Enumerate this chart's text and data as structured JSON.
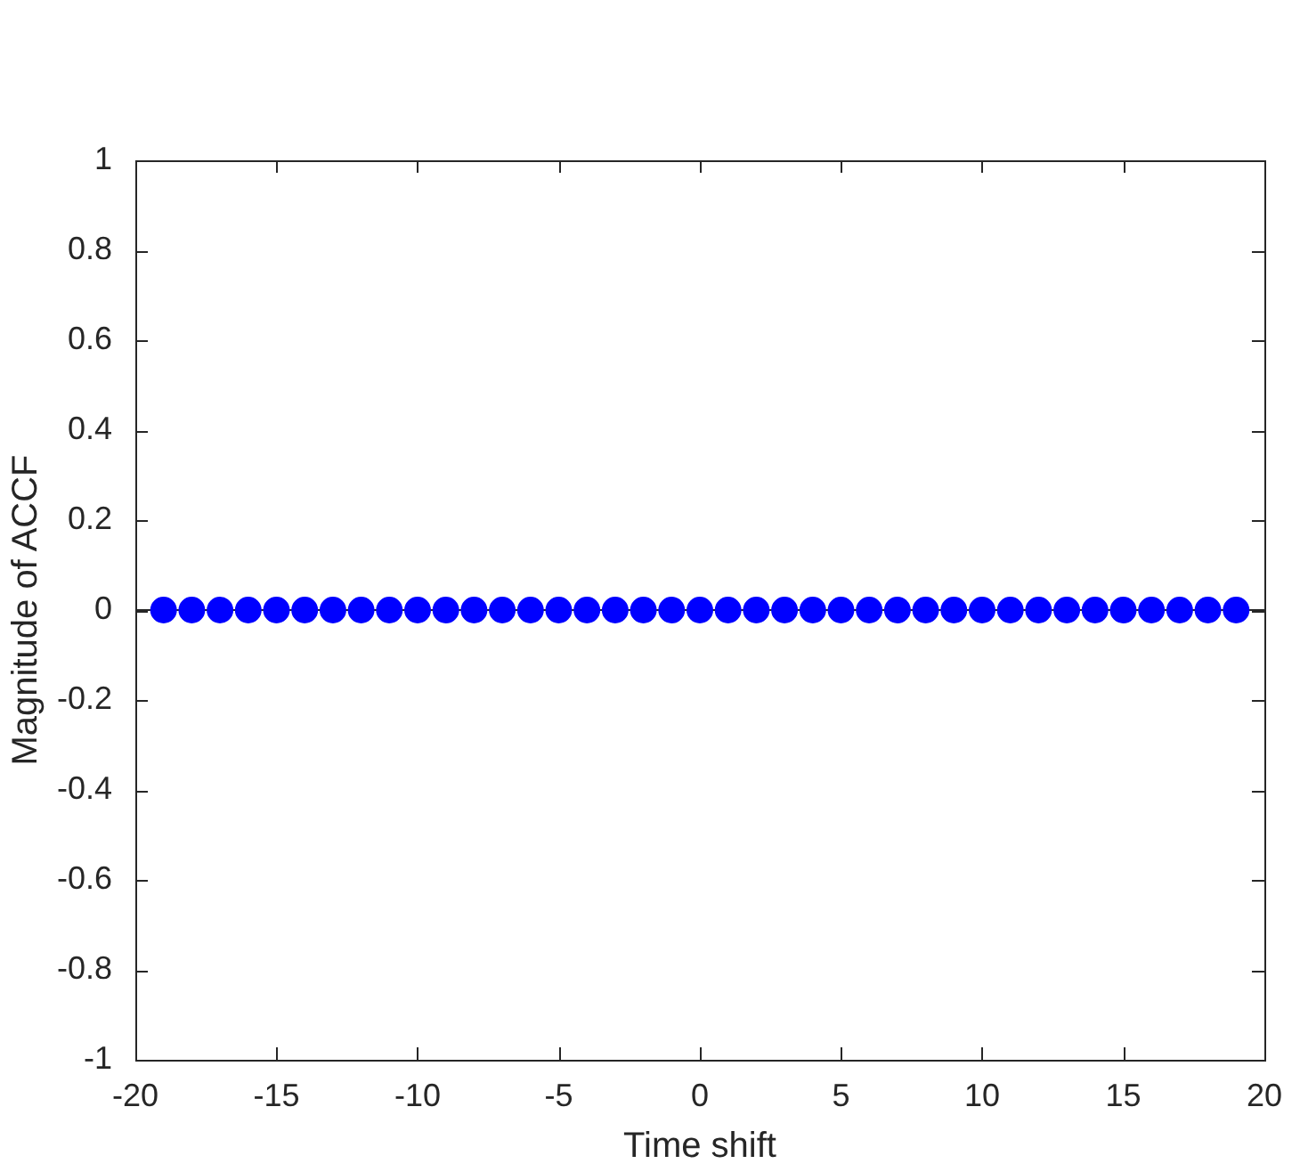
{
  "chart_data": {
    "type": "lollipop",
    "xlabel": "Time shift",
    "ylabel": "Magnitude of ACCF",
    "x": [
      -19,
      -18,
      -17,
      -16,
      -15,
      -14,
      -13,
      -12,
      -11,
      -10,
      -9,
      -8,
      -7,
      -6,
      -5,
      -4,
      -3,
      -2,
      -1,
      0,
      1,
      2,
      3,
      4,
      5,
      6,
      7,
      8,
      9,
      10,
      11,
      12,
      13,
      14,
      15,
      16,
      17,
      18,
      19
    ],
    "series": [
      {
        "color": "#0000ff",
        "values": [
          0,
          0,
          0,
          0,
          0,
          0,
          0,
          0,
          0,
          0,
          0,
          0,
          0,
          0,
          0,
          0,
          0,
          0,
          0,
          0,
          0,
          0,
          0,
          0,
          0,
          0,
          0,
          0,
          0,
          0,
          0,
          0,
          0,
          0,
          0,
          0,
          0,
          0,
          0
        ]
      }
    ],
    "xlim": [
      -20,
      20
    ],
    "xticks": [
      -20,
      -15,
      -10,
      -5,
      0,
      5,
      10,
      15,
      20
    ],
    "ylim": [
      -1,
      1
    ],
    "yticks": [
      -1,
      -0.8,
      -0.6,
      -0.4,
      -0.2,
      0,
      0.2,
      0.4,
      0.6,
      0.8,
      1
    ],
    "marker": "circle",
    "ref_lines": [
      {
        "axis": "y",
        "value": 0,
        "color": "#262626"
      }
    ]
  }
}
